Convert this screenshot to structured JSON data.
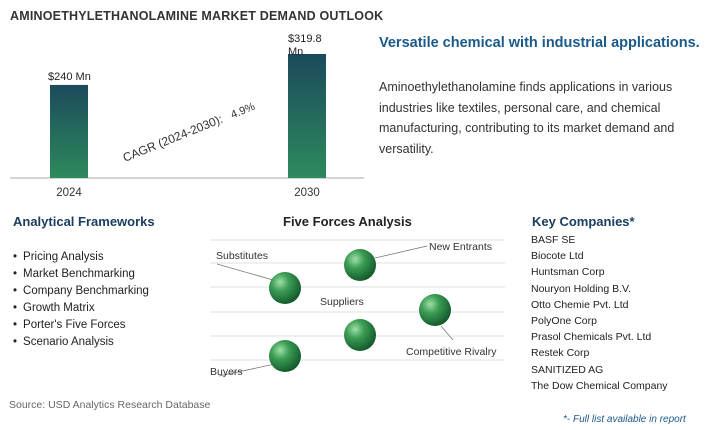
{
  "title": "AMINOETHYLETHANOLAMINE MARKET DEMAND OUTLOOK",
  "chart_data": {
    "type": "bar",
    "categories": [
      "2024",
      "2030"
    ],
    "values": [
      240,
      319.8
    ],
    "value_labels": [
      "$240 Mn",
      "$319.8 Mn"
    ],
    "cagr_label": "CAGR (2024-2030):",
    "cagr_value": "4.9%",
    "colors": [
      "#1b4a5c",
      "#2d7a5a"
    ]
  },
  "tagline": "Versatile chemical with industrial applications.",
  "description": "Aminoethylethanolamine finds applications in various industries like textiles, personal care, and chemical manufacturing, contributing to its market demand and versatility.",
  "frameworks": {
    "heading": "Analytical Frameworks",
    "items": [
      "Pricing Analysis",
      "Market Benchmarking",
      "Company Benchmarking",
      "Growth Matrix",
      "Porter's Five Forces",
      "Scenario Analysis"
    ]
  },
  "five_forces": {
    "heading": "Five Forces Analysis",
    "labels": {
      "substitutes": "Substitutes",
      "new_entrants": "New Entrants",
      "suppliers": "Suppliers",
      "competitive_rivalry": "Competitive Rivalry",
      "buyers": "Buyers"
    },
    "sphere_color": "#2e8b4a"
  },
  "companies": {
    "heading": "Key Companies*",
    "items": [
      "BASF SE",
      "Biocote Ltd",
      "Huntsman Corp",
      "Nouryon Holding B.V.",
      "Otto Chemie Pvt. Ltd",
      "PolyOne Corp",
      "Prasol Chemicals Pvt. Ltd",
      "Restek Corp",
      "SANITIZED AG",
      "The Dow Chemical Company"
    ]
  },
  "source": "Source: USD Analytics Research Database",
  "footnote": "*- Full list available in report"
}
